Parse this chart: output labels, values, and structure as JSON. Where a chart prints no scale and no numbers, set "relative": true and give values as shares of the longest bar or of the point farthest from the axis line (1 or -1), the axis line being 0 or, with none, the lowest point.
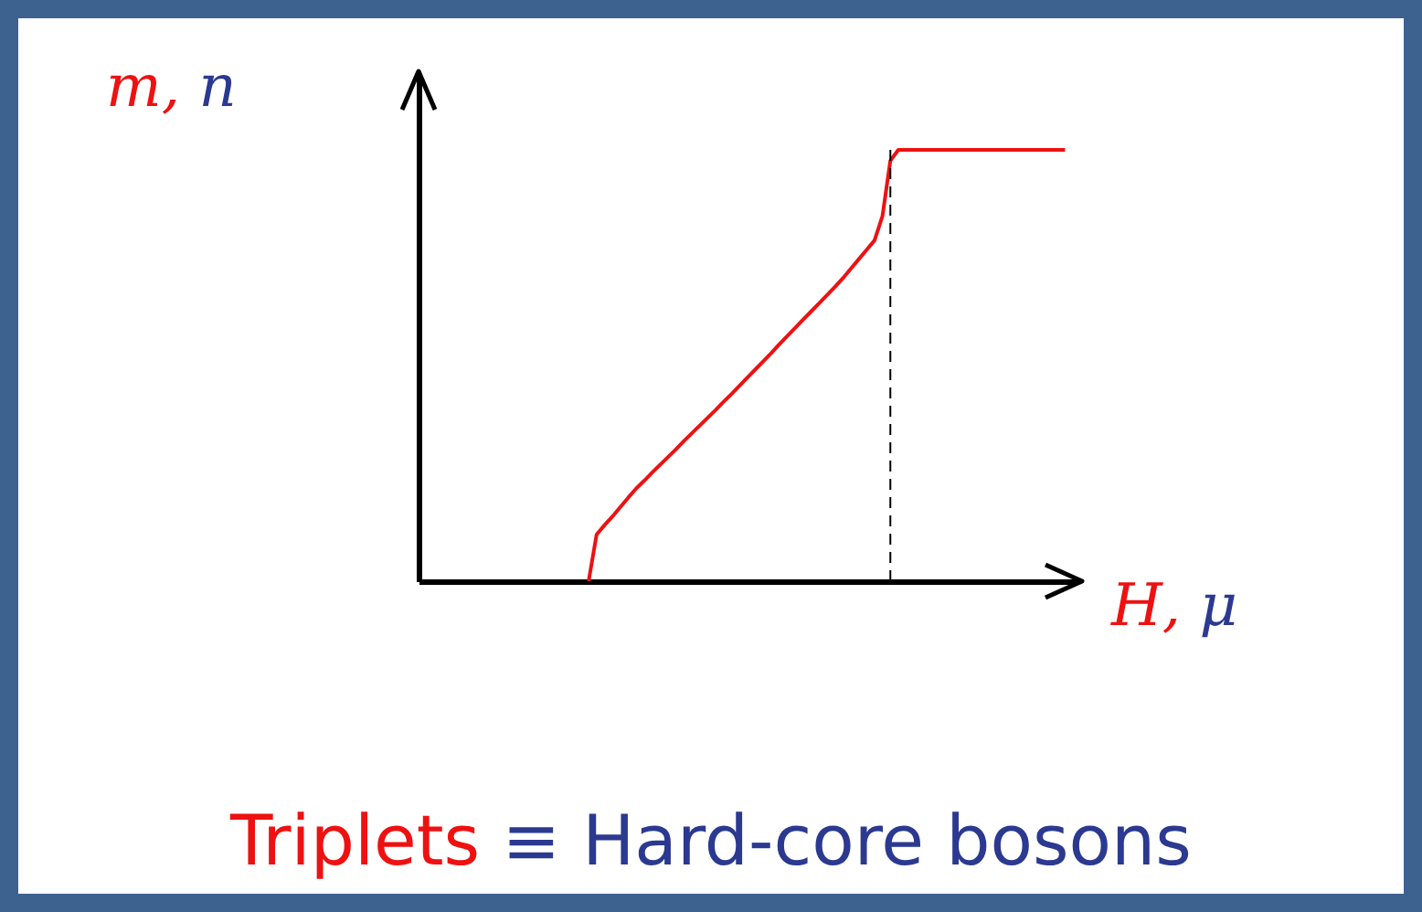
{
  "chart_data": {
    "type": "line",
    "relative": true,
    "xlabel": "H, μ",
    "annotations": [
      "m, n",
      "Triplets ≡ Hard-core bosons"
    ],
    "grid": false,
    "marker": "none",
    "line_style": "solid",
    "categories": [
      null,
      null,
      null,
      null,
      null,
      null,
      null,
      null,
      null,
      null,
      null,
      null,
      null,
      null,
      null,
      null,
      null,
      null,
      null,
      null,
      null,
      null,
      null,
      null,
      null,
      null,
      null,
      null,
      null,
      null,
      null,
      null,
      null,
      null,
      null,
      null,
      null,
      null,
      null,
      null,
      null,
      null,
      null,
      null,
      null,
      null,
      null,
      null,
      null,
      null,
      null,
      null,
      null,
      null,
      null,
      null,
      null,
      null,
      null,
      null,
      null
    ],
    "series": [
      {
        "color": "#ee1111",
        "values": [
          0,
          0.108,
          0.13,
          0.15,
          0.172,
          0.194,
          0.215,
          0.233,
          0.252,
          0.27,
          0.288,
          0.306,
          0.325,
          0.343,
          0.361,
          0.379,
          0.397,
          0.416,
          0.434,
          0.453,
          0.472,
          0.491,
          0.51,
          0.529,
          0.549,
          0.568,
          0.587,
          0.606,
          0.625,
          0.644,
          0.663,
          0.682,
          0.702,
          0.724,
          0.746,
          0.768,
          0.79,
          0.846,
          0.975,
          1,
          1,
          1,
          1,
          1,
          1,
          1,
          1,
          1,
          1,
          1,
          1,
          1,
          1,
          1,
          1,
          1,
          1,
          1,
          1,
          1,
          1
        ]
      }
    ]
  }
}
